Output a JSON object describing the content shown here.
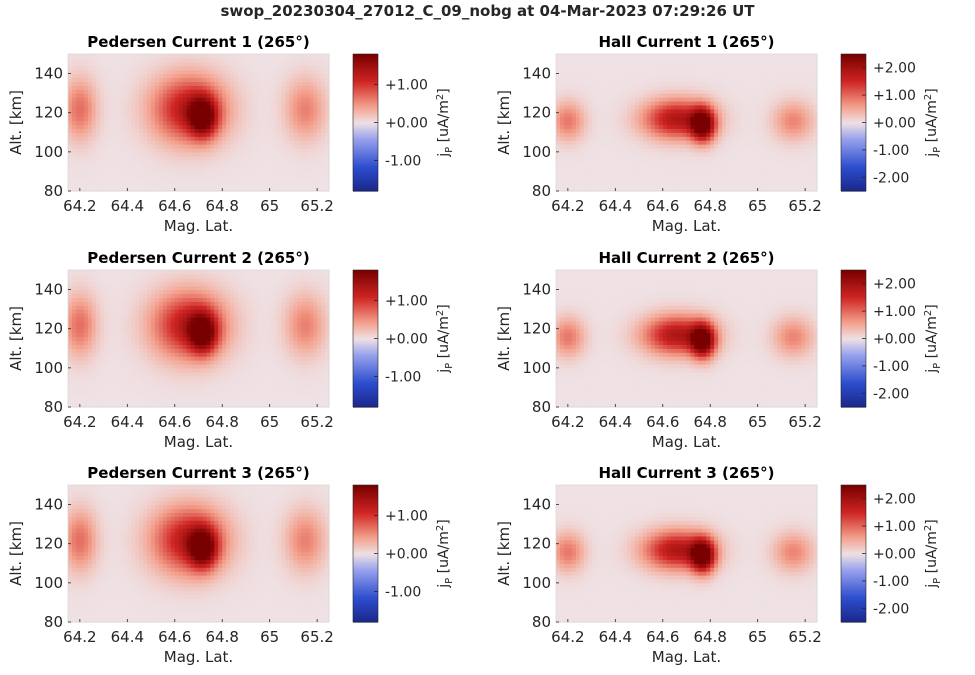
{
  "figure_title": "swop_20230304_27012_C_09_nobg at 04-Mar-2023 07:29:26 UT",
  "chart_data": [
    {
      "type": "heatmap",
      "title": "Pedersen Current 1 (265°)",
      "xlabel": "Mag. Lat.",
      "ylabel": "Alt. [km]",
      "xlim": [
        64.15,
        65.25
      ],
      "ylim": [
        80,
        150
      ],
      "xticks": [
        64.2,
        64.4,
        64.6,
        64.8,
        65,
        65.2
      ],
      "xtick_labels": [
        "64.2",
        "64.4",
        "64.6",
        "64.8",
        "65",
        "65.2"
      ],
      "yticks": [
        80,
        100,
        120,
        140
      ],
      "ytick_labels": [
        "80",
        "100",
        "120",
        "140"
      ],
      "colorbar_label": "jP [uA/m2]",
      "colorbar_ticks": [
        -1,
        0,
        1
      ],
      "colorbar_tick_labels": [
        "-1.00",
        "+0.00",
        "+1.00"
      ],
      "clim": [
        -1.8,
        1.8
      ],
      "colormap": "diverging blue-white-red",
      "features": [
        {
          "lat": 64.2,
          "alt": 122,
          "value": 0.7,
          "sigma_lat": 0.05,
          "sigma_alt": 11
        },
        {
          "lat": 64.66,
          "alt": 122,
          "value": 1.3,
          "sigma_lat": 0.11,
          "sigma_alt": 12
        },
        {
          "lat": 64.72,
          "alt": 118,
          "value": 1.4,
          "sigma_lat": 0.04,
          "sigma_alt": 7
        },
        {
          "lat": 65.15,
          "alt": 122,
          "value": 0.6,
          "sigma_lat": 0.06,
          "sigma_alt": 11
        }
      ]
    },
    {
      "type": "heatmap",
      "title": "Hall Current 1 (265°)",
      "xlabel": "Mag. Lat.",
      "ylabel": "Alt. [km]",
      "xlim": [
        64.15,
        65.25
      ],
      "ylim": [
        80,
        150
      ],
      "xticks": [
        64.2,
        64.4,
        64.6,
        64.8,
        65,
        65.2
      ],
      "xtick_labels": [
        "64.2",
        "64.4",
        "64.6",
        "64.8",
        "65",
        "65.2"
      ],
      "yticks": [
        80,
        100,
        120,
        140
      ],
      "ytick_labels": [
        "80",
        "100",
        "120",
        "140"
      ],
      "colorbar_label": "jP [uA/m2]",
      "colorbar_ticks": [
        -2,
        -1,
        0,
        1,
        2
      ],
      "colorbar_tick_labels": [
        "-2.00",
        "-1.00",
        "+0.00",
        "+1.00",
        "+2.00"
      ],
      "clim": [
        -2.5,
        2.5
      ],
      "colormap": "diverging blue-white-red",
      "features": [
        {
          "lat": 64.2,
          "alt": 116,
          "value": 0.9,
          "sigma_lat": 0.05,
          "sigma_alt": 7
        },
        {
          "lat": 64.66,
          "alt": 117,
          "value": 1.9,
          "sigma_lat": 0.1,
          "sigma_alt": 7
        },
        {
          "lat": 64.77,
          "alt": 114,
          "value": 2.4,
          "sigma_lat": 0.035,
          "sigma_alt": 6
        },
        {
          "lat": 65.15,
          "alt": 116,
          "value": 0.8,
          "sigma_lat": 0.06,
          "sigma_alt": 7
        }
      ]
    },
    {
      "type": "heatmap",
      "title": "Pedersen Current 2 (265°)",
      "xlabel": "Mag. Lat.",
      "ylabel": "Alt. [km]",
      "xlim": [
        64.15,
        65.25
      ],
      "ylim": [
        80,
        150
      ],
      "xticks": [
        64.2,
        64.4,
        64.6,
        64.8,
        65,
        65.2
      ],
      "xtick_labels": [
        "64.2",
        "64.4",
        "64.6",
        "64.8",
        "65",
        "65.2"
      ],
      "yticks": [
        80,
        100,
        120,
        140
      ],
      "ytick_labels": [
        "80",
        "100",
        "120",
        "140"
      ],
      "colorbar_label": "jP [uA/m2]",
      "colorbar_ticks": [
        -1,
        0,
        1
      ],
      "colorbar_tick_labels": [
        "-1.00",
        "+0.00",
        "+1.00"
      ],
      "clim": [
        -1.8,
        1.8
      ],
      "colormap": "diverging blue-white-red",
      "features": [
        {
          "lat": 64.2,
          "alt": 122,
          "value": 0.7,
          "sigma_lat": 0.05,
          "sigma_alt": 11
        },
        {
          "lat": 64.66,
          "alt": 122,
          "value": 1.3,
          "sigma_lat": 0.11,
          "sigma_alt": 12
        },
        {
          "lat": 64.72,
          "alt": 118,
          "value": 1.4,
          "sigma_lat": 0.04,
          "sigma_alt": 7
        },
        {
          "lat": 65.15,
          "alt": 122,
          "value": 0.6,
          "sigma_lat": 0.06,
          "sigma_alt": 11
        }
      ]
    },
    {
      "type": "heatmap",
      "title": "Hall Current 2 (265°)",
      "xlabel": "Mag. Lat.",
      "ylabel": "Alt. [km]",
      "xlim": [
        64.15,
        65.25
      ],
      "ylim": [
        80,
        150
      ],
      "xticks": [
        64.2,
        64.4,
        64.6,
        64.8,
        65,
        65.2
      ],
      "xtick_labels": [
        "64.2",
        "64.4",
        "64.6",
        "64.8",
        "65",
        "65.2"
      ],
      "yticks": [
        80,
        100,
        120,
        140
      ],
      "ytick_labels": [
        "80",
        "100",
        "120",
        "140"
      ],
      "colorbar_label": "jP [uA/m2]",
      "colorbar_ticks": [
        -2,
        -1,
        0,
        1,
        2
      ],
      "colorbar_tick_labels": [
        "-2.00",
        "-1.00",
        "+0.00",
        "+1.00",
        "+2.00"
      ],
      "clim": [
        -2.5,
        2.5
      ],
      "colormap": "diverging blue-white-red",
      "features": [
        {
          "lat": 64.2,
          "alt": 116,
          "value": 0.9,
          "sigma_lat": 0.05,
          "sigma_alt": 7
        },
        {
          "lat": 64.66,
          "alt": 117,
          "value": 1.9,
          "sigma_lat": 0.1,
          "sigma_alt": 7
        },
        {
          "lat": 64.77,
          "alt": 114,
          "value": 2.4,
          "sigma_lat": 0.035,
          "sigma_alt": 6
        },
        {
          "lat": 65.15,
          "alt": 116,
          "value": 0.8,
          "sigma_lat": 0.06,
          "sigma_alt": 7
        }
      ]
    },
    {
      "type": "heatmap",
      "title": "Pedersen Current 3 (265°)",
      "xlabel": "Mag. Lat.",
      "ylabel": "Alt. [km]",
      "xlim": [
        64.15,
        65.25
      ],
      "ylim": [
        80,
        150
      ],
      "xticks": [
        64.2,
        64.4,
        64.6,
        64.8,
        65,
        65.2
      ],
      "xtick_labels": [
        "64.2",
        "64.4",
        "64.6",
        "64.8",
        "65",
        "65.2"
      ],
      "yticks": [
        80,
        100,
        120,
        140
      ],
      "ytick_labels": [
        "80",
        "100",
        "120",
        "140"
      ],
      "colorbar_label": "jP [uA/m2]",
      "colorbar_ticks": [
        -1,
        0,
        1
      ],
      "colorbar_tick_labels": [
        "-1.00",
        "+0.00",
        "+1.00"
      ],
      "clim": [
        -1.8,
        1.8
      ],
      "colormap": "diverging blue-white-red",
      "features": [
        {
          "lat": 64.2,
          "alt": 122,
          "value": 0.7,
          "sigma_lat": 0.05,
          "sigma_alt": 11
        },
        {
          "lat": 64.66,
          "alt": 122,
          "value": 1.3,
          "sigma_lat": 0.11,
          "sigma_alt": 12
        },
        {
          "lat": 64.72,
          "alt": 118,
          "value": 1.4,
          "sigma_lat": 0.04,
          "sigma_alt": 7
        },
        {
          "lat": 65.15,
          "alt": 122,
          "value": 0.6,
          "sigma_lat": 0.06,
          "sigma_alt": 11
        }
      ]
    },
    {
      "type": "heatmap",
      "title": "Hall Current 3 (265°)",
      "xlabel": "Mag. Lat.",
      "ylabel": "Alt. [km]",
      "xlim": [
        64.15,
        65.25
      ],
      "ylim": [
        80,
        150
      ],
      "xticks": [
        64.2,
        64.4,
        64.6,
        64.8,
        65,
        65.2
      ],
      "xtick_labels": [
        "64.2",
        "64.4",
        "64.6",
        "64.8",
        "65",
        "65.2"
      ],
      "yticks": [
        80,
        100,
        120,
        140
      ],
      "ytick_labels": [
        "80",
        "100",
        "120",
        "140"
      ],
      "colorbar_label": "jP [uA/m2]",
      "colorbar_ticks": [
        -2,
        -1,
        0,
        1,
        2
      ],
      "colorbar_tick_labels": [
        "-2.00",
        "-1.00",
        "+0.00",
        "+1.00",
        "+2.00"
      ],
      "clim": [
        -2.5,
        2.5
      ],
      "colormap": "diverging blue-white-red",
      "features": [
        {
          "lat": 64.2,
          "alt": 116,
          "value": 0.9,
          "sigma_lat": 0.05,
          "sigma_alt": 7
        },
        {
          "lat": 64.66,
          "alt": 117,
          "value": 1.9,
          "sigma_lat": 0.1,
          "sigma_alt": 7
        },
        {
          "lat": 64.77,
          "alt": 114,
          "value": 2.4,
          "sigma_lat": 0.035,
          "sigma_alt": 6
        },
        {
          "lat": 65.15,
          "alt": 116,
          "value": 0.8,
          "sigma_lat": 0.06,
          "sigma_alt": 7
        }
      ]
    }
  ]
}
